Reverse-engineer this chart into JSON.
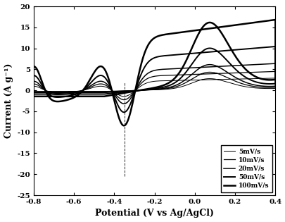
{
  "title": "",
  "xlabel": "Potential (V vs Ag/AgCl)",
  "ylabel": "Current (A g⁻¹)",
  "xlim": [
    -0.8,
    0.4
  ],
  "ylim": [
    -25,
    20
  ],
  "xticks": [
    -0.8,
    -0.6,
    -0.4,
    -0.2,
    0.0,
    0.2,
    0.4
  ],
  "yticks": [
    -25,
    -20,
    -15,
    -10,
    -5,
    0,
    5,
    10,
    15,
    20
  ],
  "scan_rates": [
    "5mV/s",
    "10mV/s",
    "20mV/s",
    "50mV/s",
    "100mV/s"
  ],
  "line_widths": [
    0.7,
    0.9,
    1.1,
    1.4,
    1.8
  ],
  "background_color": "#ffffff",
  "line_color": "#000000",
  "scales": [
    1.0,
    1.55,
    2.2,
    3.6,
    5.8
  ],
  "dashed_line_x": -0.35
}
